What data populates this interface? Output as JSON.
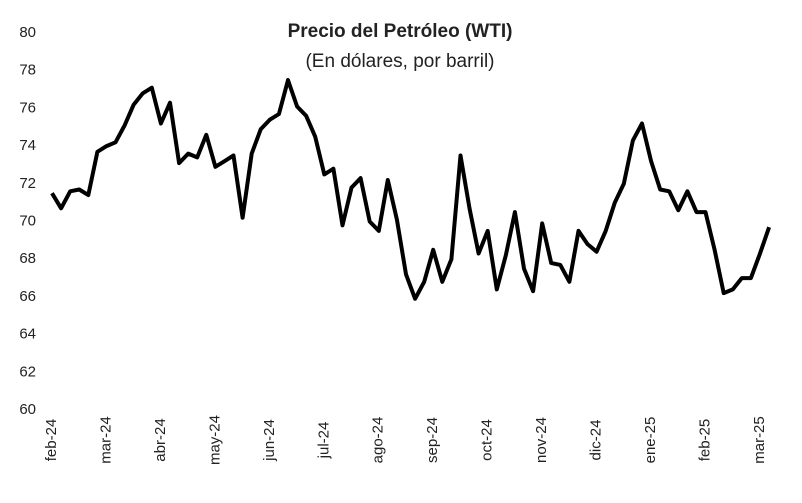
{
  "chart_data": {
    "type": "line",
    "title": "Precio del Petróleo (WTI)",
    "subtitle": "(En dólares, por barril)",
    "categories": [
      "feb-24",
      null,
      null,
      null,
      null,
      null,
      "mar-24",
      null,
      null,
      null,
      null,
      null,
      "abr-24",
      null,
      null,
      null,
      null,
      null,
      "may-24",
      null,
      null,
      null,
      null,
      null,
      "jun-24",
      null,
      null,
      null,
      null,
      null,
      "jul-24",
      null,
      null,
      null,
      null,
      null,
      "ago-24",
      null,
      null,
      null,
      null,
      null,
      "sep-24",
      null,
      null,
      null,
      null,
      null,
      "oct-24",
      null,
      null,
      null,
      null,
      null,
      "nov-24",
      null,
      null,
      null,
      null,
      null,
      "dic-24",
      null,
      null,
      null,
      null,
      null,
      "ene-25",
      null,
      null,
      null,
      null,
      null,
      "feb-25",
      null,
      null,
      null,
      null,
      null,
      "mar-25",
      null
    ],
    "series": [
      {
        "name": "WTI",
        "color": "#000000",
        "values": [
          71.5,
          70.7,
          71.6,
          71.7,
          71.4,
          73.7,
          74.0,
          74.2,
          75.1,
          76.2,
          76.8,
          77.1,
          75.2,
          76.3,
          73.1,
          73.6,
          73.4,
          74.6,
          72.9,
          73.2,
          73.5,
          70.2,
          73.6,
          74.9,
          75.4,
          75.7,
          77.5,
          76.1,
          75.6,
          74.5,
          72.5,
          72.8,
          69.8,
          71.8,
          72.3,
          70.0,
          69.5,
          72.2,
          70.1,
          67.2,
          65.9,
          66.8,
          68.5,
          66.8,
          68.0,
          73.5,
          70.7,
          68.3,
          69.5,
          66.4,
          68.2,
          70.5,
          67.5,
          66.3,
          69.9,
          67.8,
          67.7,
          66.8,
          69.5,
          68.8,
          68.4,
          69.5,
          71.0,
          72.0,
          74.3,
          75.2,
          73.2,
          71.7,
          71.6,
          70.6,
          71.6,
          70.5,
          70.5,
          68.5,
          66.2,
          66.4,
          67.0,
          67.0,
          68.3,
          69.7
        ]
      }
    ],
    "ylim": [
      60,
      80
    ],
    "yticks": [
      60,
      62,
      64,
      66,
      68,
      70,
      72,
      74,
      76,
      78,
      80
    ],
    "grid": false
  }
}
